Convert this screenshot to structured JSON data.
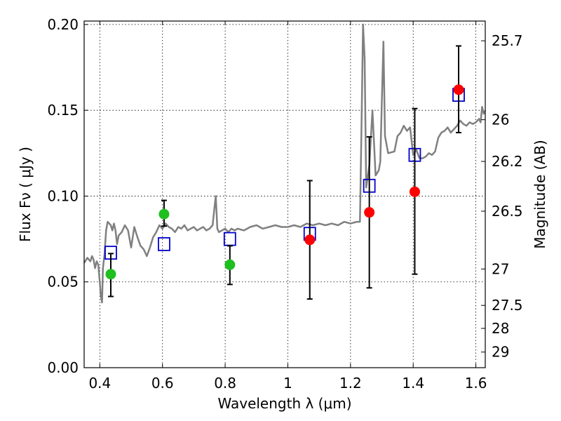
{
  "chart_data": {
    "type": "scatter",
    "xlabel": "Wavelength  λ (μm)",
    "ylabel": "Flux  Fν  ( μJy )",
    "ylabel_right": "Magnitude (AB)",
    "xlim": [
      0.35,
      1.63
    ],
    "ylim": [
      0.0,
      0.202
    ],
    "x_ticks": [
      0.4,
      0.6,
      0.8,
      1.0,
      1.2,
      1.4,
      1.6
    ],
    "x_tick_labels": [
      "0.4",
      "0.6",
      "0.8",
      "1",
      "1.2",
      "1.4",
      "1.6"
    ],
    "y_ticks": [
      0.0,
      0.05,
      0.1,
      0.15,
      0.2
    ],
    "y_tick_labels": [
      "0.00",
      "0.05",
      "0.10",
      "0.15",
      "0.20"
    ],
    "right_ticks": [
      {
        "label": "25.7",
        "flux": 0.1905
      },
      {
        "label": "26",
        "flux": 0.1445
      },
      {
        "label": "26.2",
        "flux": 0.1202
      },
      {
        "label": "26.5",
        "flux": 0.0912
      },
      {
        "label": "27",
        "flux": 0.0575
      },
      {
        "label": "27.5",
        "flux": 0.0363
      },
      {
        "label": "28",
        "flux": 0.0229
      },
      {
        "label": "29",
        "flux": 0.0091
      }
    ],
    "grid": true,
    "colors": {
      "model": "#808080",
      "green": "#1fbf1f",
      "red": "#ff0000",
      "blue": "#0000cc",
      "errorbar": "#000000"
    },
    "series": [
      {
        "name": "Model spectrum",
        "style": "line",
        "x": [
          0.35,
          0.36,
          0.37,
          0.375,
          0.38,
          0.385,
          0.39,
          0.395,
          0.4,
          0.403,
          0.407,
          0.41,
          0.415,
          0.42,
          0.425,
          0.43,
          0.435,
          0.44,
          0.445,
          0.45,
          0.455,
          0.46,
          0.47,
          0.48,
          0.49,
          0.5,
          0.51,
          0.52,
          0.53,
          0.54,
          0.55,
          0.56,
          0.57,
          0.58,
          0.59,
          0.6,
          0.61,
          0.62,
          0.63,
          0.64,
          0.65,
          0.66,
          0.67,
          0.68,
          0.69,
          0.7,
          0.71,
          0.72,
          0.73,
          0.74,
          0.75,
          0.76,
          0.765,
          0.77,
          0.775,
          0.78,
          0.79,
          0.8,
          0.81,
          0.82,
          0.83,
          0.84,
          0.86,
          0.88,
          0.9,
          0.92,
          0.94,
          0.96,
          0.98,
          1.0,
          1.02,
          1.04,
          1.06,
          1.08,
          1.1,
          1.12,
          1.14,
          1.16,
          1.18,
          1.2,
          1.22,
          1.23,
          1.235,
          1.24,
          1.245,
          1.25,
          1.26,
          1.27,
          1.28,
          1.29,
          1.295,
          1.3,
          1.305,
          1.31,
          1.32,
          1.34,
          1.35,
          1.36,
          1.37,
          1.38,
          1.39,
          1.4,
          1.41,
          1.42,
          1.43,
          1.44,
          1.45,
          1.46,
          1.47,
          1.48,
          1.49,
          1.5,
          1.51,
          1.52,
          1.53,
          1.54,
          1.55,
          1.56,
          1.57,
          1.58,
          1.59,
          1.6,
          1.61,
          1.615,
          1.62,
          1.625,
          1.63
        ],
        "y": [
          0.061,
          0.064,
          0.062,
          0.065,
          0.063,
          0.058,
          0.062,
          0.06,
          0.05,
          0.042,
          0.038,
          0.058,
          0.066,
          0.08,
          0.085,
          0.084,
          0.083,
          0.08,
          0.084,
          0.08,
          0.072,
          0.077,
          0.079,
          0.083,
          0.08,
          0.07,
          0.082,
          0.076,
          0.071,
          0.069,
          0.065,
          0.07,
          0.076,
          0.079,
          0.083,
          0.081,
          0.084,
          0.082,
          0.081,
          0.079,
          0.082,
          0.081,
          0.083,
          0.08,
          0.081,
          0.082,
          0.08,
          0.081,
          0.082,
          0.08,
          0.081,
          0.083,
          0.092,
          0.1,
          0.081,
          0.079,
          0.08,
          0.081,
          0.079,
          0.081,
          0.08,
          0.081,
          0.08,
          0.082,
          0.083,
          0.081,
          0.082,
          0.083,
          0.082,
          0.082,
          0.083,
          0.082,
          0.084,
          0.083,
          0.084,
          0.083,
          0.084,
          0.083,
          0.085,
          0.084,
          0.085,
          0.085,
          0.14,
          0.2,
          0.18,
          0.105,
          0.118,
          0.15,
          0.112,
          0.115,
          0.12,
          0.155,
          0.19,
          0.135,
          0.125,
          0.126,
          0.135,
          0.137,
          0.141,
          0.138,
          0.14,
          0.124,
          0.127,
          0.122,
          0.122,
          0.123,
          0.125,
          0.124,
          0.126,
          0.134,
          0.137,
          0.138,
          0.14,
          0.137,
          0.139,
          0.141,
          0.144,
          0.142,
          0.141,
          0.143,
          0.142,
          0.143,
          0.145,
          0.143,
          0.152,
          0.148,
          0.15
        ]
      },
      {
        "name": "Blue model points",
        "style": "square",
        "x": [
          0.435,
          0.605,
          0.815,
          1.07,
          1.26,
          1.405,
          1.545
        ],
        "y": [
          0.067,
          0.072,
          0.075,
          0.078,
          0.106,
          0.124,
          0.159
        ]
      },
      {
        "name": "Green detections",
        "style": "circle",
        "x": [
          0.435,
          0.605,
          0.815
        ],
        "y": [
          0.0545,
          0.0895,
          0.06
        ],
        "yerr_low": [
          0.0415,
          0.0825,
          0.0485
        ],
        "yerr_high": [
          0.0665,
          0.0975,
          0.071
        ]
      },
      {
        "name": "Red detections",
        "style": "circle",
        "x": [
          1.07,
          1.26,
          1.405,
          1.545
        ],
        "y": [
          0.0745,
          0.0905,
          0.1025,
          0.162
        ],
        "yerr_low": [
          0.04,
          0.0465,
          0.0545,
          0.137
        ],
        "yerr_high": [
          0.109,
          0.1345,
          0.151,
          0.1875
        ]
      }
    ]
  }
}
